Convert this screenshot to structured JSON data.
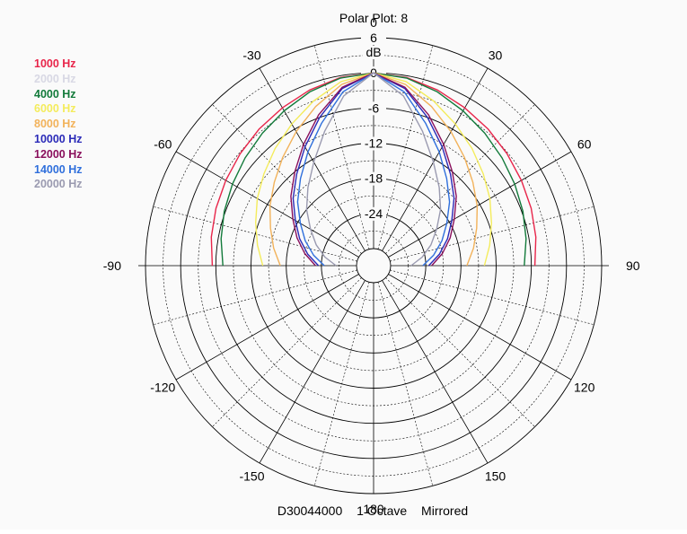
{
  "chart_data": {
    "type": "polar",
    "title": "Polar Plot: 8",
    "radial_unit": "dB",
    "radial_range": [
      -30,
      6
    ],
    "radial_ticks": [
      "6",
      "0",
      "-6",
      "-12",
      "-18",
      "-24"
    ],
    "angle_ticks": [
      "0",
      "30",
      "60",
      "90",
      "120",
      "150",
      "180",
      "-150",
      "-120",
      "-90",
      "-60",
      "-30"
    ],
    "grid": true,
    "mirrored": true,
    "legend_position": "top-left",
    "legend": [
      {
        "label": "1000 Hz",
        "color": "#e8254a"
      },
      {
        "label": "2000 Hz",
        "color": "#d8d8e4"
      },
      {
        "label": "4000 Hz",
        "color": "#127a3a"
      },
      {
        "label": "6000 Hz",
        "color": "#f4ec5c"
      },
      {
        "label": "8000 Hz",
        "color": "#f2b25a"
      },
      {
        "label": "10000 Hz",
        "color": "#2a2ab8"
      },
      {
        "label": "12000 Hz",
        "color": "#8a0f5c"
      },
      {
        "label": "14000 Hz",
        "color": "#2f6fdc"
      },
      {
        "label": "20000 Hz",
        "color": "#9a9ab0"
      }
    ],
    "series": [
      {
        "name": "1000 Hz",
        "color": "#e8254a",
        "angles_deg": [
          0,
          10,
          20,
          30,
          40,
          50,
          60,
          70,
          80,
          90
        ],
        "db": [
          0,
          -0.3,
          -1.0,
          -1.8,
          -2.5,
          -3.2,
          -3.8,
          -4.3,
          -4.8,
          -5.4
        ]
      },
      {
        "name": "4000 Hz",
        "color": "#127a3a",
        "angles_deg": [
          0,
          10,
          20,
          30,
          40,
          50,
          60,
          70,
          80,
          90
        ],
        "db": [
          0,
          -0.4,
          -1.3,
          -2.4,
          -3.4,
          -4.3,
          -5.1,
          -5.8,
          -6.5,
          -7.2
        ]
      },
      {
        "name": "6000 Hz",
        "color": "#f4ec5c",
        "angles_deg": [
          0,
          10,
          20,
          30,
          40,
          50,
          60,
          70,
          80,
          90
        ],
        "db": [
          0,
          -1.0,
          -3.0,
          -5.0,
          -6.8,
          -8.5,
          -10.0,
          -11.5,
          -12.8,
          -14.0
        ]
      },
      {
        "name": "8000 Hz",
        "color": "#f2b25a",
        "angles_deg": [
          0,
          10,
          20,
          30,
          40,
          50,
          60,
          70,
          80,
          90
        ],
        "db": [
          0,
          -1.5,
          -4.0,
          -6.5,
          -8.8,
          -10.8,
          -12.5,
          -14.2,
          -15.6,
          -17.0
        ]
      },
      {
        "name": "10000 Hz",
        "color": "#2a2ab8",
        "angles_deg": [
          0,
          10,
          20,
          30,
          40,
          50,
          60,
          70,
          80,
          90
        ],
        "db": [
          0,
          -2.2,
          -6.0,
          -9.5,
          -12.5,
          -15.0,
          -17.5,
          -19.5,
          -21.5,
          -23.5
        ]
      },
      {
        "name": "12000 Hz",
        "color": "#8a0f5c",
        "angles_deg": [
          0,
          10,
          20,
          30,
          40,
          50,
          60,
          70,
          80,
          90
        ],
        "db": [
          0,
          -2.0,
          -5.5,
          -9.0,
          -12.0,
          -14.5,
          -17.0,
          -19.0,
          -21.0,
          -23.0
        ]
      },
      {
        "name": "14000 Hz",
        "color": "#2f6fdc",
        "angles_deg": [
          0,
          10,
          20,
          30,
          40,
          50,
          60,
          70,
          80,
          90
        ],
        "db": [
          0,
          -2.8,
          -7.0,
          -10.5,
          -13.5,
          -16.0,
          -18.5,
          -20.5,
          -22.5,
          -24.5
        ]
      },
      {
        "name": "20000 Hz",
        "color": "#9a9ab0",
        "angles_deg": [
          0,
          10,
          20,
          30,
          40,
          50,
          60,
          70,
          80,
          90
        ],
        "db": [
          0,
          -3.5,
          -8.5,
          -12.5,
          -15.5,
          -18.0,
          -20.5,
          -22.5,
          -24.5,
          -26.5
        ]
      }
    ]
  },
  "footer": {
    "code": "D30044000",
    "band": "1 Octave",
    "mode": "Mirrored"
  }
}
